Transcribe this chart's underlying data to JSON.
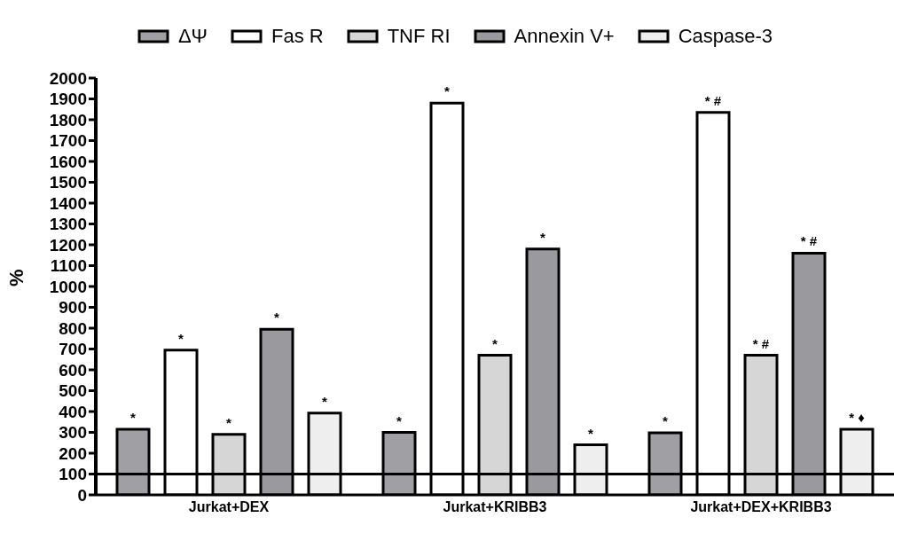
{
  "chart_data": {
    "type": "bar",
    "ylabel": "%",
    "categories": [
      "Jurkat+DEX",
      "Jurkat+KRIBB3",
      "Jurkat+DEX+KRIBB3"
    ],
    "series": [
      {
        "name": "ΔΨ",
        "color": "#a0a0a4",
        "values": [
          315,
          300,
          298
        ],
        "value_labels": [
          "*",
          "*",
          "*"
        ]
      },
      {
        "name": "Fas R",
        "color": "#ffffff",
        "values": [
          695,
          1880,
          1835
        ],
        "value_labels": [
          "*",
          "*",
          "* #"
        ]
      },
      {
        "name": "TNF RI",
        "color": "#d6d6d6",
        "values": [
          290,
          670,
          670
        ],
        "value_labels": [
          "*",
          "*",
          "* #"
        ]
      },
      {
        "name": "Annexin V+",
        "color": "#9a9a9e",
        "values": [
          795,
          1180,
          1160
        ],
        "value_labels": [
          "*",
          "*",
          "* #"
        ]
      },
      {
        "name": "Caspase-3",
        "color": "#eeeeee",
        "values": [
          393,
          240,
          315
        ],
        "value_labels": [
          "*",
          "*",
          "* ♦"
        ]
      }
    ],
    "ylim": [
      0,
      2000
    ],
    "yticks": [
      0,
      100,
      200,
      300,
      400,
      500,
      600,
      700,
      800,
      900,
      1000,
      1100,
      1200,
      1300,
      1400,
      1500,
      1600,
      1700,
      1800,
      1900,
      2000
    ],
    "ref_lines": [
      {
        "axis": "y",
        "value": 100,
        "color": "#000000"
      }
    ],
    "legend": "top",
    "grid": false
  }
}
